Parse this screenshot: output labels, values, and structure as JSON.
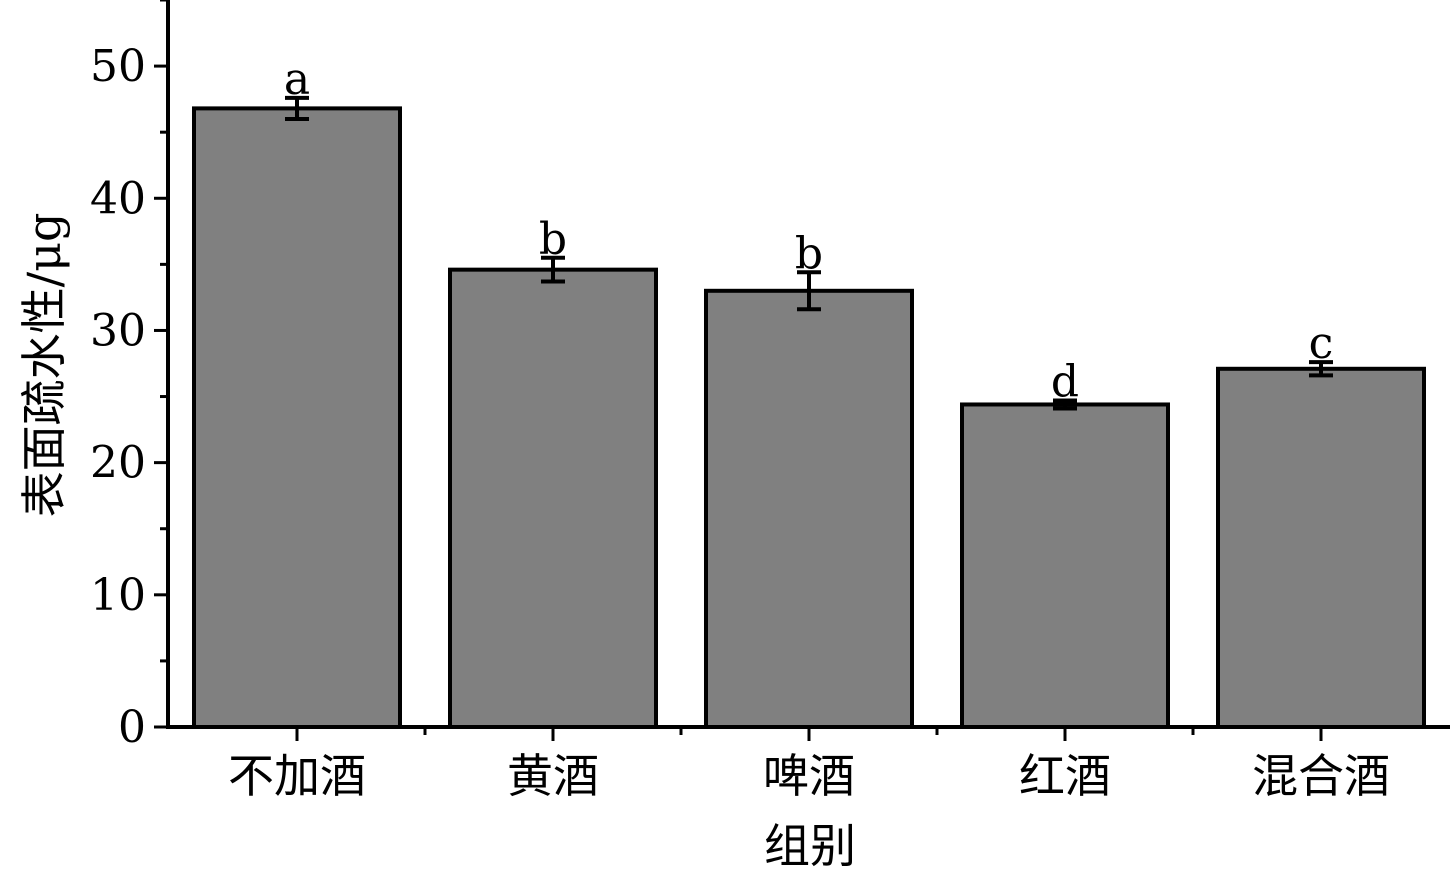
{
  "chart_data": {
    "type": "bar",
    "xlabel": "组别",
    "ylabel": "表面疏水性/μg",
    "ylim": [
      0,
      55
    ],
    "yticks": [
      0,
      10,
      20,
      30,
      40,
      50
    ],
    "categories": [
      "不加酒",
      "黄酒",
      "啤酒",
      "红酒",
      "混合酒"
    ],
    "values": [
      46.8,
      34.6,
      33.0,
      24.4,
      27.1
    ],
    "errors": [
      0.8,
      0.9,
      1.4,
      0.3,
      0.5
    ],
    "significance": [
      "a",
      "b",
      "b",
      "d",
      "c"
    ],
    "bar_color": "#808080",
    "grid": false,
    "legend": "none"
  }
}
